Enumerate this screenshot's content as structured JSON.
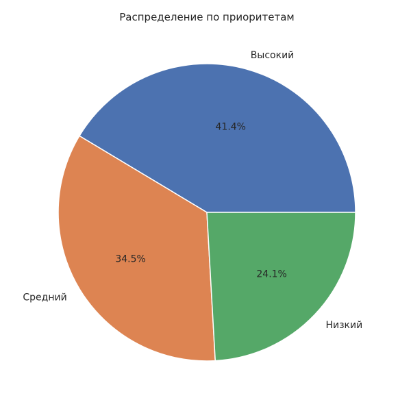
{
  "chart_data": {
    "type": "pie",
    "title": "Распределение по приоритетам",
    "categories": [
      "Высокий",
      "Средний",
      "Низкий"
    ],
    "values": [
      41.4,
      34.5,
      24.1
    ],
    "labels": [
      "41.4%",
      "34.5%",
      "24.1%"
    ],
    "colors": [
      "#4c72b0",
      "#dd8452",
      "#55a868"
    ],
    "start_angle_deg": 0,
    "direction": "counterclockwise",
    "legend": "none"
  }
}
